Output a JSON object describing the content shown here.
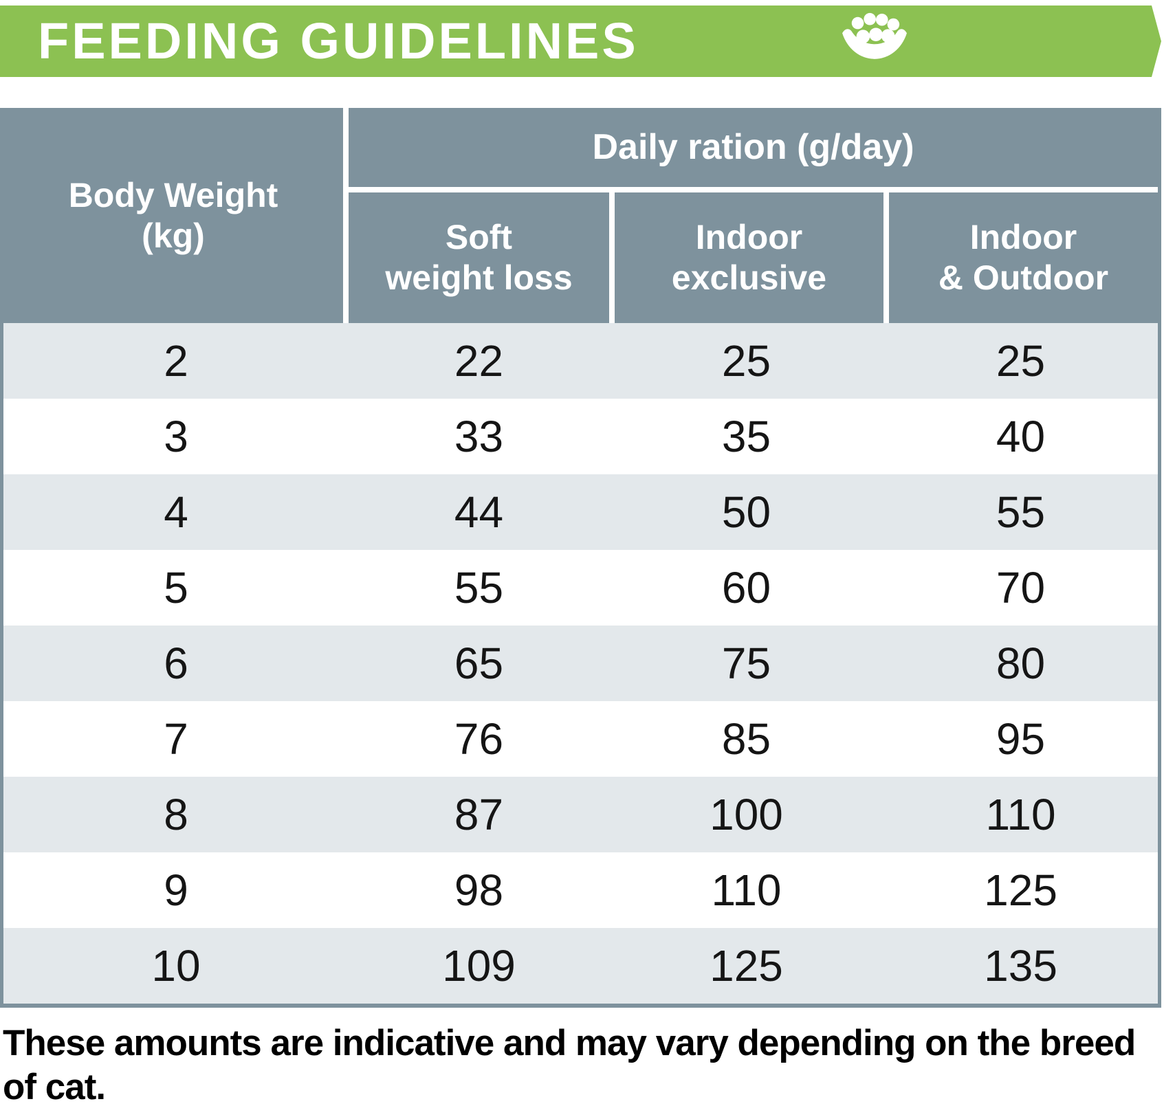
{
  "title_bar": {
    "title": "FEEDING GUIDELINES",
    "icon": "kibble-bowl-icon",
    "bg_color": "#8CC152"
  },
  "chart_data": {
    "type": "table",
    "title": "FEEDING GUIDELINES",
    "row_header": {
      "line1": "Body Weight",
      "line2": "(kg)"
    },
    "group_header": "Daily ration (g/day)",
    "sub_headers": [
      {
        "line1": "Soft",
        "line2": "weight loss"
      },
      {
        "line1": "Indoor",
        "line2": "exclusive"
      },
      {
        "line1": "Indoor",
        "line2": "& Outdoor"
      }
    ],
    "columns": [
      "Body Weight (kg)",
      "Soft weight loss",
      "Indoor exclusive",
      "Indoor & Outdoor"
    ],
    "rows": [
      [
        2,
        22,
        25,
        25
      ],
      [
        3,
        33,
        35,
        40
      ],
      [
        4,
        44,
        50,
        55
      ],
      [
        5,
        55,
        60,
        70
      ],
      [
        6,
        65,
        75,
        80
      ],
      [
        7,
        76,
        85,
        95
      ],
      [
        8,
        87,
        100,
        110
      ],
      [
        9,
        98,
        110,
        125
      ],
      [
        10,
        109,
        125,
        135
      ]
    ],
    "note": "These amounts are indicative and may vary depending on the breed of cat."
  },
  "footer": {
    "note": "These amounts are indicative and may vary depending on the breed of cat."
  },
  "colors": {
    "accent_green": "#8CC152",
    "header_slate": "#7E929D",
    "row_alt": "#E3E8EB",
    "row_white": "#FFFFFF",
    "value_text": "#151515"
  }
}
